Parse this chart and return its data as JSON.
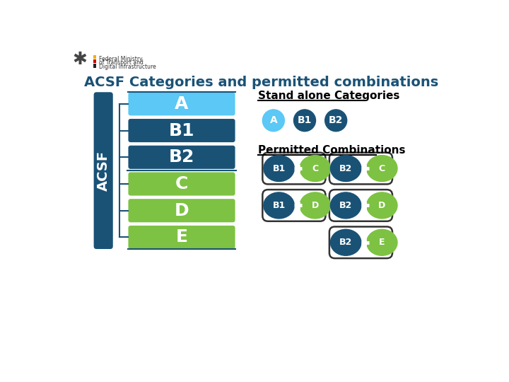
{
  "title": "ACSF Categories and permitted combinations",
  "title_color": "#1a5276",
  "title_fontsize": 14,
  "bg_color": "#ffffff",
  "categories": [
    "A",
    "B1",
    "B2",
    "C",
    "D",
    "E"
  ],
  "cat_colors": [
    "#5bc8f5",
    "#1a5276",
    "#1a5276",
    "#7dc242",
    "#7dc242",
    "#7dc242"
  ],
  "acsf_bar_color": "#1a5276",
  "acsf_text_color": "#ffffff",
  "standalone_label": "Stand alone Categories",
  "standalone_circles": [
    {
      "label": "A",
      "color": "#5bc8f5",
      "text_color": "#ffffff"
    },
    {
      "label": "B1",
      "color": "#1a5276",
      "text_color": "#ffffff"
    },
    {
      "label": "B2",
      "color": "#1a5276",
      "text_color": "#ffffff"
    }
  ],
  "combinations_label": "Permitted Combinations",
  "combinations": [
    {
      "left": "B1",
      "left_color": "#1a5276",
      "right": "C",
      "right_color": "#7dc242"
    },
    {
      "left": "B2",
      "left_color": "#1a5276",
      "right": "C",
      "right_color": "#7dc242"
    },
    {
      "left": "B1",
      "left_color": "#1a5276",
      "right": "D",
      "right_color": "#7dc242"
    },
    {
      "left": "B2",
      "left_color": "#1a5276",
      "right": "D",
      "right_color": "#7dc242"
    },
    {
      "left": "B2",
      "left_color": "#1a5276",
      "right": "E",
      "right_color": "#7dc242"
    }
  ],
  "line_color": "#1a5276",
  "bracket_color": "#1a5276",
  "combo_box_edge": "#333333",
  "combo_box_face": "#ffffff",
  "plus_color": "#ffffff",
  "logo_black": "#222222",
  "logo_red": "#cc0000",
  "logo_gold": "#ffaa00",
  "ministry_text_color": "#333333"
}
